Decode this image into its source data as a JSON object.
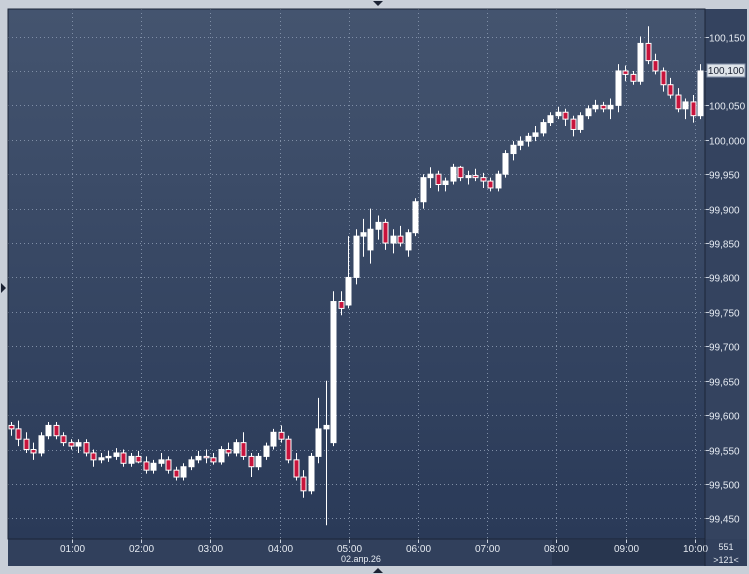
{
  "chart_data": {
    "type": "candlestick",
    "ylim": [
      99420,
      100190
    ],
    "y_ticks": [
      "100,150",
      "100,100",
      "100,050",
      "100,000",
      "99,950",
      "99,900",
      "99,850",
      "99,800",
      "99,750",
      "99,700",
      "99,650",
      "99,600",
      "99,550",
      "99,500",
      "99,450"
    ],
    "y_tick_values": [
      100150,
      100100,
      100050,
      100000,
      99950,
      99900,
      99850,
      99800,
      99750,
      99700,
      99650,
      99600,
      99550,
      99500,
      99450
    ],
    "x_ticks": [
      "01:00",
      "02:00",
      "03:00",
      "04:00",
      "05:00",
      "06:00",
      "07:00",
      "08:00",
      "09:00",
      "10:00"
    ],
    "date_label": "02.апр.26",
    "current_price_label": "100,100",
    "bar_count_label": "551",
    "page_label": ">121<",
    "grid": true,
    "colors": {
      "bg_top": "#44546f",
      "bg_bottom": "#2a3a58",
      "up_fill": "#ffffff",
      "down_fill": "#c8143c",
      "wick": "#ffffff",
      "grid": "#7f8ea6"
    },
    "candles": [
      [
        99585,
        99590,
        99570,
        99580
      ],
      [
        99580,
        99592,
        99555,
        99565
      ],
      [
        99565,
        99575,
        99545,
        99550
      ],
      [
        99550,
        99560,
        99535,
        99545
      ],
      [
        99545,
        99575,
        99540,
        99570
      ],
      [
        99570,
        99590,
        99565,
        99585
      ],
      [
        99585,
        99590,
        99565,
        99570
      ],
      [
        99570,
        99575,
        99555,
        99560
      ],
      [
        99560,
        99565,
        99550,
        99555
      ],
      [
        99555,
        99565,
        99545,
        99560
      ],
      [
        99560,
        99565,
        99540,
        99545
      ],
      [
        99545,
        99550,
        99525,
        99535
      ],
      [
        99535,
        99545,
        99530,
        99538
      ],
      [
        99538,
        99548,
        99532,
        99540
      ],
      [
        99540,
        99552,
        99535,
        99545
      ],
      [
        99545,
        99550,
        99525,
        99530
      ],
      [
        99530,
        99545,
        99525,
        99540
      ],
      [
        99540,
        99548,
        99530,
        99532
      ],
      [
        99532,
        99540,
        99515,
        99520
      ],
      [
        99520,
        99535,
        99515,
        99530
      ],
      [
        99530,
        99545,
        99525,
        99535
      ],
      [
        99535,
        99540,
        99515,
        99520
      ],
      [
        99520,
        99525,
        99505,
        99510
      ],
      [
        99510,
        99530,
        99505,
        99525
      ],
      [
        99525,
        99540,
        99520,
        99535
      ],
      [
        99535,
        99548,
        99530,
        99540
      ],
      [
        99540,
        99550,
        99530,
        99538
      ],
      [
        99538,
        99545,
        99528,
        99532
      ],
      [
        99532,
        99555,
        99528,
        99550
      ],
      [
        99550,
        99560,
        99540,
        99545
      ],
      [
        99545,
        99565,
        99540,
        99560
      ],
      [
        99560,
        99575,
        99535,
        99540
      ],
      [
        99540,
        99545,
        99510,
        99525
      ],
      [
        99525,
        99545,
        99520,
        99540
      ],
      [
        99540,
        99560,
        99535,
        99555
      ],
      [
        99555,
        99580,
        99550,
        99575
      ],
      [
        99575,
        99585,
        99560,
        99565
      ],
      [
        99565,
        99570,
        99530,
        99535
      ],
      [
        99535,
        99545,
        99505,
        99510
      ],
      [
        99510,
        99520,
        99480,
        99490
      ],
      [
        99490,
        99545,
        99485,
        99540
      ],
      [
        99540,
        99625,
        99530,
        99580
      ],
      [
        99580,
        99650,
        99440,
        99585
      ],
      [
        99560,
        99780,
        99555,
        99765
      ],
      [
        99765,
        99780,
        99745,
        99755
      ],
      [
        99760,
        99860,
        99755,
        99800
      ],
      [
        99800,
        99870,
        99790,
        99860
      ],
      [
        99860,
        99885,
        99830,
        99865
      ],
      [
        99840,
        99900,
        99820,
        99870
      ],
      [
        99870,
        99890,
        99855,
        99880
      ],
      [
        99880,
        99885,
        99840,
        99850
      ],
      [
        99850,
        99870,
        99835,
        99860
      ],
      [
        99860,
        99875,
        99845,
        99850
      ],
      [
        99840,
        99870,
        99830,
        99865
      ],
      [
        99865,
        99915,
        99860,
        99910
      ],
      [
        99910,
        99950,
        99900,
        99945
      ],
      [
        99945,
        99960,
        99930,
        99950
      ],
      [
        99950,
        99955,
        99925,
        99935
      ],
      [
        99935,
        99945,
        99925,
        99940
      ],
      [
        99940,
        99965,
        99935,
        99960
      ],
      [
        99960,
        99962,
        99940,
        99945
      ],
      [
        99945,
        99955,
        99935,
        99948
      ],
      [
        99948,
        99958,
        99940,
        99945
      ],
      [
        99945,
        99952,
        99930,
        99940
      ],
      [
        99940,
        99945,
        99925,
        99930
      ],
      [
        99930,
        99955,
        99925,
        99950
      ],
      [
        99950,
        99985,
        99945,
        99980
      ],
      [
        99980,
        99998,
        99970,
        99992
      ],
      [
        99992,
        100005,
        99985,
        99998
      ],
      [
        99998,
        100010,
        99990,
        100005
      ],
      [
        100005,
        100020,
        99998,
        100010
      ],
      [
        100010,
        100030,
        100005,
        100025
      ],
      [
        100025,
        100040,
        100020,
        100035
      ],
      [
        100035,
        100048,
        100030,
        100040
      ],
      [
        100040,
        100045,
        100020,
        100030
      ],
      [
        100030,
        100035,
        100005,
        100015
      ],
      [
        100015,
        100040,
        100010,
        100035
      ],
      [
        100035,
        100050,
        100030,
        100045
      ],
      [
        100045,
        100058,
        100040,
        100050
      ],
      [
        100050,
        100055,
        100040,
        100045
      ],
      [
        100045,
        100060,
        100030,
        100050
      ],
      [
        100050,
        100110,
        100040,
        100100
      ],
      [
        100100,
        100108,
        100085,
        100095
      ],
      [
        100095,
        100100,
        100080,
        100085
      ],
      [
        100085,
        100150,
        100080,
        100140
      ],
      [
        100140,
        100165,
        100110,
        100115
      ],
      [
        100115,
        100125,
        100095,
        100100
      ],
      [
        100100,
        100105,
        100070,
        100080
      ],
      [
        100080,
        100090,
        100060,
        100065
      ],
      [
        100065,
        100075,
        100040,
        100045
      ],
      [
        100045,
        100060,
        100030,
        100055
      ],
      [
        100055,
        100065,
        100025,
        100035
      ],
      [
        100035,
        100110,
        100030,
        100100
      ]
    ]
  }
}
